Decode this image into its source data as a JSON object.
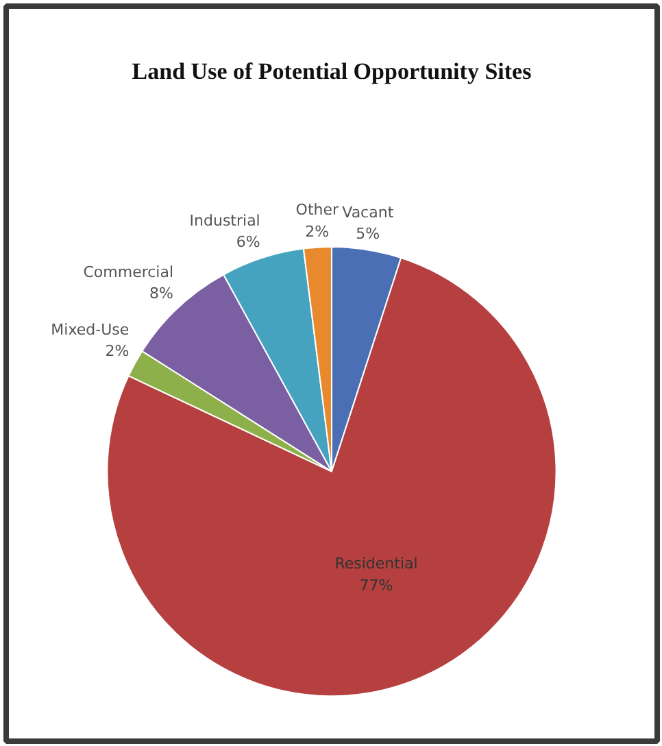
{
  "chart_data": {
    "type": "pie",
    "title": "Land Use of Potential Opportunity Sites",
    "categories": [
      "Vacant",
      "Residential",
      "Mixed-Use",
      "Commercial",
      "Industrial",
      "Other"
    ],
    "values": [
      5,
      77,
      2,
      8,
      6,
      2
    ],
    "colors": [
      "#4a6fb5",
      "#b5403f",
      "#8db04a",
      "#7a5fa3",
      "#45a3c0",
      "#e8892e"
    ],
    "value_labels": [
      "5%",
      "77%",
      "2%",
      "8%",
      "6%",
      "2%"
    ]
  }
}
